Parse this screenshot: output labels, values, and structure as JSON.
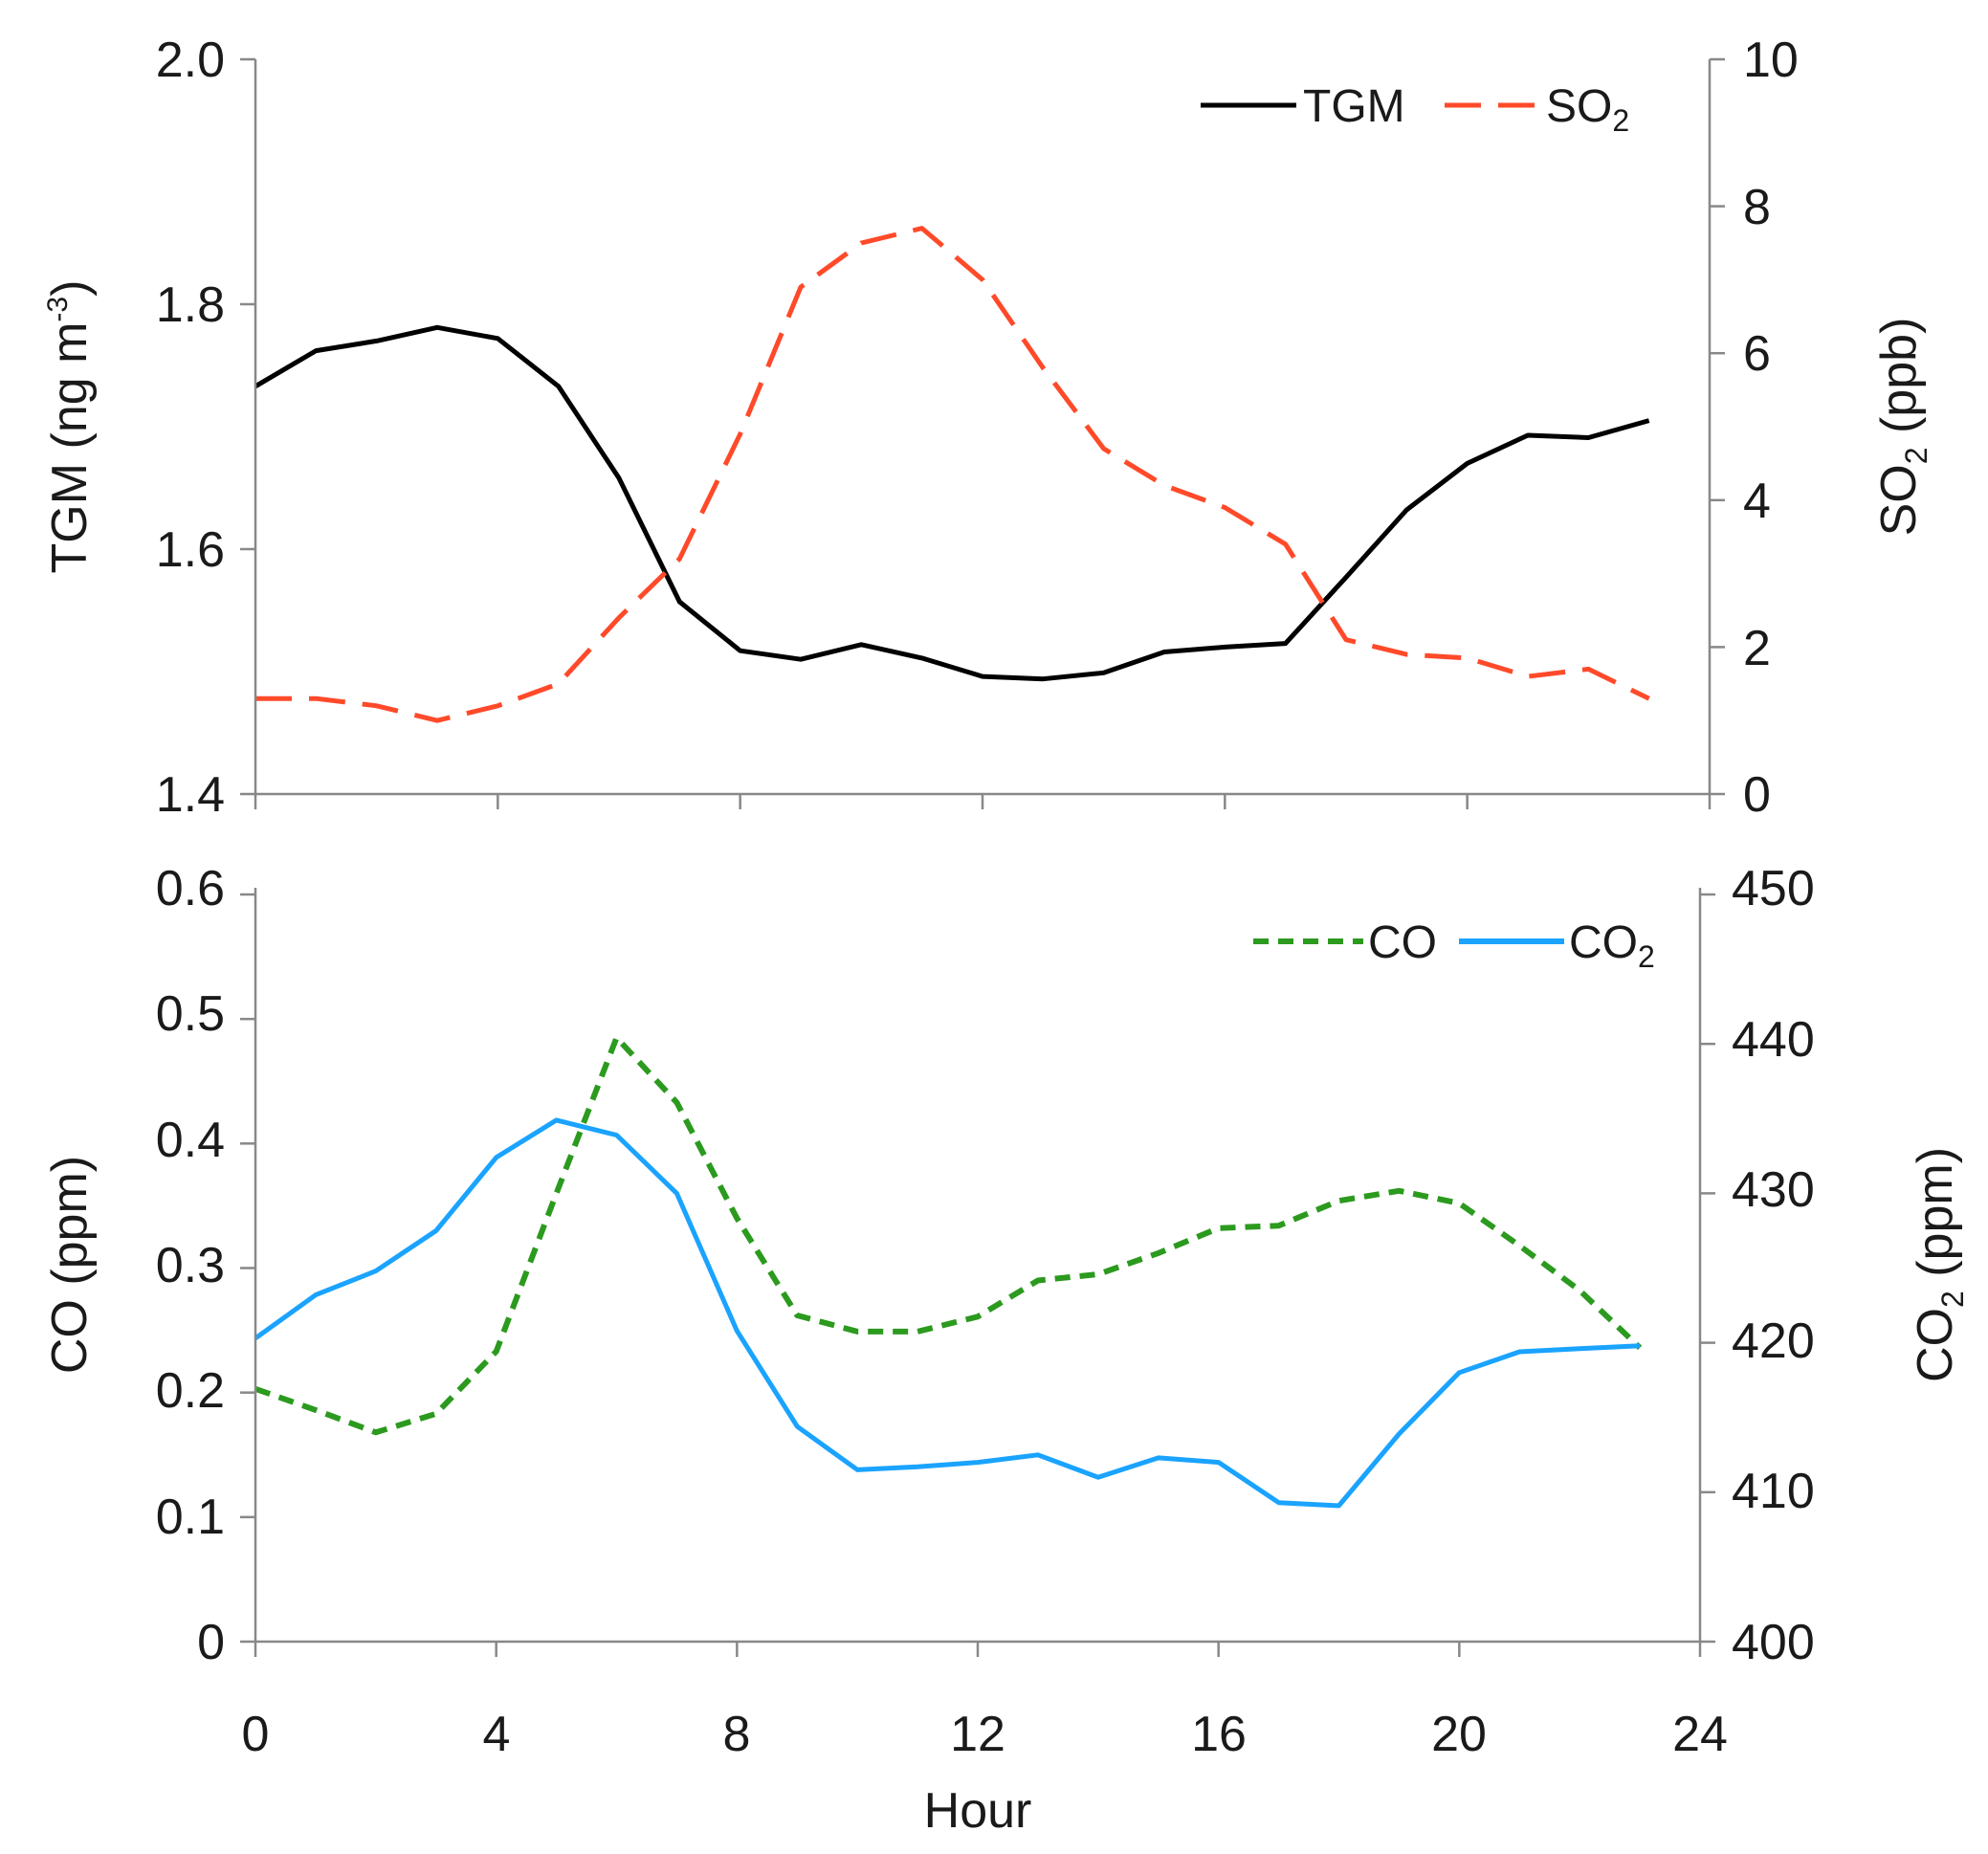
{
  "chart_data": [
    {
      "type": "line",
      "panel": "top",
      "x": [
        0,
        1,
        2,
        3,
        4,
        5,
        6,
        7,
        8,
        9,
        10,
        11,
        12,
        13,
        14,
        15,
        16,
        17,
        18,
        19,
        20,
        21,
        22,
        23
      ],
      "xlim": [
        0,
        24
      ],
      "xticks": [
        "0",
        "4",
        "8",
        "12",
        "16",
        "20",
        "24"
      ],
      "left_axis": {
        "label_main": "TGM (ng m",
        "label_sup": "-3",
        "label_end": ")",
        "ylim": [
          1.4,
          2.0
        ],
        "ticks": [
          "1.4",
          "1.6",
          "1.8",
          "2.0"
        ]
      },
      "right_axis": {
        "label_main": "SO",
        "label_sub": "2",
        "label_end": " (ppb)",
        "ylim": [
          0,
          10
        ],
        "ticks": [
          "0",
          "2",
          "4",
          "6",
          "8",
          "10"
        ]
      },
      "series": [
        {
          "name": "TGM",
          "axis": "left",
          "color": "#000000",
          "dash": "solid",
          "values": [
            1.733,
            1.762,
            1.77,
            1.781,
            1.772,
            1.733,
            1.658,
            1.557,
            1.517,
            1.51,
            1.522,
            1.511,
            1.496,
            1.494,
            1.499,
            1.516,
            1.52,
            1.523,
            1.577,
            1.632,
            1.67,
            1.693,
            1.691,
            1.705
          ]
        },
        {
          "name": "SO",
          "name_sub": "2",
          "axis": "right",
          "color": "#ff4a2a",
          "dash": "long-dash",
          "values": [
            1.3,
            1.3,
            1.2,
            1.0,
            1.2,
            1.5,
            2.4,
            3.2,
            4.9,
            6.9,
            7.5,
            7.7,
            7.0,
            5.8,
            4.7,
            4.2,
            3.9,
            3.4,
            2.1,
            1.9,
            1.85,
            1.6,
            1.7,
            1.3
          ]
        }
      ],
      "legend": "top-right"
    },
    {
      "type": "line",
      "panel": "bottom",
      "x": [
        0,
        1,
        2,
        3,
        4,
        5,
        6,
        7,
        8,
        9,
        10,
        11,
        12,
        13,
        14,
        15,
        16,
        17,
        18,
        19,
        20,
        21,
        22,
        23
      ],
      "xlim": [
        0,
        24
      ],
      "xticks": [
        "0",
        "4",
        "8",
        "12",
        "16",
        "20",
        "24"
      ],
      "xlabel": "Hour",
      "left_axis": {
        "label_main": "CO (ppm)",
        "ylim": [
          0,
          0.6
        ],
        "ticks": [
          "0",
          "0.1",
          "0.2",
          "0.3",
          "0.4",
          "0.5",
          "0.6"
        ]
      },
      "right_axis": {
        "label_main": "CO",
        "label_sub": "2",
        "label_end": " (ppm)",
        "ylim": [
          400,
          450
        ],
        "ticks": [
          "400",
          "410",
          "420",
          "430",
          "440",
          "450"
        ]
      },
      "series": [
        {
          "name": "CO",
          "axis": "left",
          "color": "#2b9a1e",
          "dash": "short-dash",
          "values": [
            0.203,
            0.186,
            0.168,
            0.183,
            0.233,
            0.36,
            0.485,
            0.433,
            0.34,
            0.262,
            0.249,
            0.249,
            0.261,
            0.29,
            0.295,
            0.312,
            0.332,
            0.334,
            0.354,
            0.362,
            0.352,
            0.318,
            0.282,
            0.236
          ]
        },
        {
          "name": "CO",
          "name_sub": "2",
          "axis": "right",
          "color": "#1aa3ff",
          "dash": "solid",
          "values": [
            420.3,
            423.2,
            424.8,
            427.5,
            432.4,
            434.9,
            433.9,
            430.0,
            420.8,
            414.4,
            411.5,
            411.7,
            412.0,
            412.5,
            411.0,
            412.3,
            412.0,
            409.3,
            409.1,
            413.9,
            418.0,
            419.4,
            419.6,
            419.8
          ]
        }
      ],
      "legend": "top-right"
    }
  ]
}
